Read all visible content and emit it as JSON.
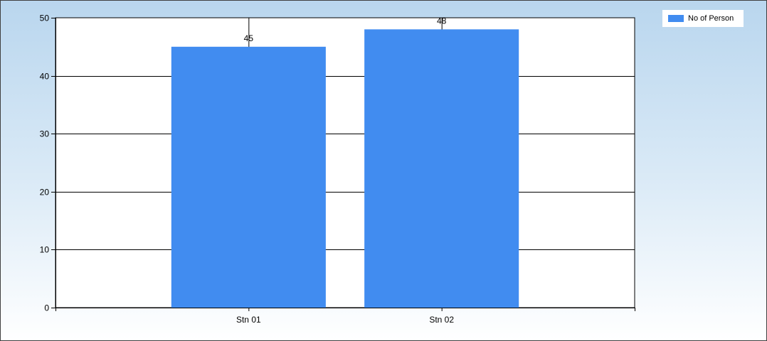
{
  "chart_data": {
    "type": "bar",
    "categories": [
      "Stn 01",
      "Stn 02"
    ],
    "series": [
      {
        "name": "No of Person",
        "values": [
          45,
          48
        ],
        "color": "#418cf0"
      }
    ],
    "data_labels": [
      "45",
      "48"
    ],
    "title": "",
    "xlabel": "",
    "ylabel": "",
    "ylim": [
      0,
      50
    ],
    "yticks": [
      0,
      10,
      20,
      30,
      40,
      50
    ],
    "grid": true,
    "legend_position": "top-right"
  }
}
